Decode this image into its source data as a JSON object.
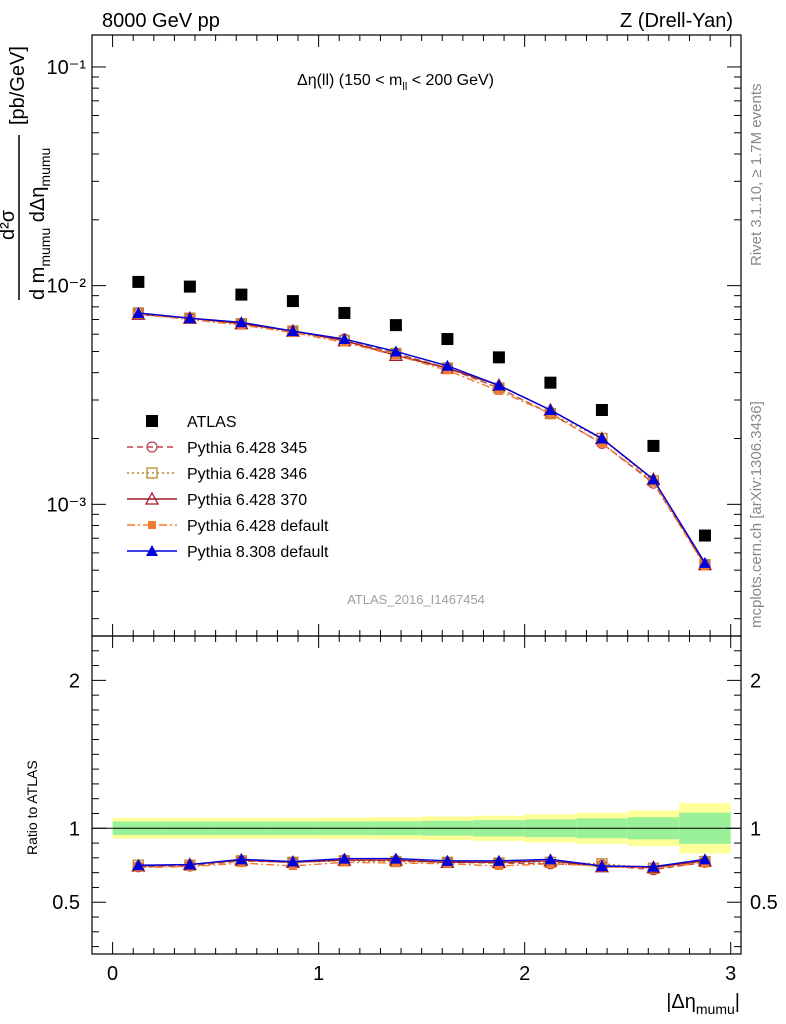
{
  "header": {
    "left": "8000 GeV pp",
    "right": "Z (Drell-Yan)"
  },
  "side_labels": {
    "rivet": "Rivet 3.1.10, ≥ 1.7M events",
    "mcplots": "mcplots.cern.ch [arXiv:1306.3436]"
  },
  "plot_title": {
    "main": "Δη(ll) (150 < m",
    "sub": "ll",
    "tail": " < 200 GeV)"
  },
  "watermark": "ATLAS_2016_I1467454",
  "ylabel": {
    "bracket": "[pb/GeV]",
    "num": "d²σ",
    "den_d": "d m",
    "den_sub1": "mumu",
    "den_d2": " dΔη",
    "den_sub2": "mumu"
  },
  "xlabel": {
    "main": "|Δη",
    "sub": "mumu",
    "tail": "|"
  },
  "ratio_ylabel": "Ratio to ATLAS",
  "legend": [
    {
      "name": "ATLAS",
      "color": "#000000",
      "marker": "square-filled",
      "line": "none"
    },
    {
      "name": "Pythia 6.428 345",
      "color": "#c0404f",
      "marker": "circle-open",
      "line": "dashed"
    },
    {
      "name": "Pythia 6.428 346",
      "color": "#b8862b",
      "marker": "square-open",
      "line": "dotted"
    },
    {
      "name": "Pythia 6.428 370",
      "color": "#a01c28",
      "marker": "triangle-open",
      "line": "solid"
    },
    {
      "name": "Pythia 6.428 default",
      "color": "#f37a32",
      "marker": "square-filled-small",
      "line": "dashdot"
    },
    {
      "name": "Pythia 8.308 default",
      "color": "#0000dd",
      "marker": "triangle-filled",
      "line": "solid"
    }
  ],
  "chart_data": {
    "type": "scatter",
    "main": {
      "yscale": "log",
      "ylim": [
        0.00025,
        0.14
      ],
      "yticklabels": [
        "10⁻¹",
        "10⁻²",
        "10⁻³"
      ],
      "ytickvalues": [
        0.1,
        0.01,
        0.001
      ]
    },
    "ratio": {
      "ylim": [
        0.15,
        2.3
      ],
      "yticks": [
        0.5,
        1,
        2
      ],
      "yticklabels": [
        "0.5",
        "1",
        "2"
      ],
      "band_inner": [
        0.045,
        0.045,
        0.045,
        0.045,
        0.046,
        0.047,
        0.05,
        0.055,
        0.06,
        0.067,
        0.075,
        0.105
      ],
      "band_outer": [
        0.07,
        0.07,
        0.07,
        0.07,
        0.072,
        0.075,
        0.08,
        0.085,
        0.095,
        0.105,
        0.12,
        0.17
      ]
    },
    "xlim": [
      -0.1,
      3.05
    ],
    "xticks": [
      0,
      1,
      2,
      3
    ],
    "xticklabels": [
      "0",
      "1",
      "2",
      "3"
    ],
    "x": [
      0.125,
      0.375,
      0.625,
      0.875,
      1.125,
      1.375,
      1.625,
      1.875,
      2.125,
      2.375,
      2.625,
      2.875
    ],
    "atlas": [
      0.0104,
      0.0099,
      0.0091,
      0.0085,
      0.0075,
      0.0066,
      0.0057,
      0.0047,
      0.0036,
      0.0027,
      0.00185,
      0.00072
    ],
    "series": [
      {
        "name": "Pythia 6.428 345",
        "values": [
          0.0075,
          0.0071,
          0.0067,
          0.0062,
          0.0057,
          0.0049,
          0.0042,
          0.0034,
          0.0026,
          0.0019,
          0.00125,
          0.00053
        ],
        "ratio": [
          0.74,
          0.745,
          0.78,
          0.77,
          0.785,
          0.78,
          0.77,
          0.765,
          0.76,
          0.75,
          0.72,
          0.77
        ]
      },
      {
        "name": "Pythia 6.428 346",
        "values": [
          0.0075,
          0.0071,
          0.0067,
          0.0062,
          0.0056,
          0.0049,
          0.0042,
          0.0034,
          0.0026,
          0.002,
          0.00128,
          0.00053
        ],
        "ratio": [
          0.75,
          0.75,
          0.78,
          0.77,
          0.78,
          0.775,
          0.77,
          0.765,
          0.77,
          0.76,
          0.73,
          0.775
        ]
      },
      {
        "name": "Pythia 6.428 370",
        "values": [
          0.0074,
          0.0071,
          0.0067,
          0.0062,
          0.0056,
          0.0048,
          0.0042,
          0.0035,
          0.0027,
          0.002,
          0.0013,
          0.00053
        ],
        "ratio": [
          0.745,
          0.755,
          0.785,
          0.77,
          0.785,
          0.785,
          0.77,
          0.77,
          0.78,
          0.74,
          0.735,
          0.78
        ]
      },
      {
        "name": "Pythia 6.428 default",
        "values": [
          0.0074,
          0.007,
          0.0066,
          0.0061,
          0.0055,
          0.0048,
          0.0041,
          0.0033,
          0.0026,
          0.0019,
          0.00127,
          0.00052
        ],
        "ratio": [
          0.735,
          0.74,
          0.765,
          0.745,
          0.77,
          0.765,
          0.76,
          0.745,
          0.76,
          0.745,
          0.73,
          0.765
        ]
      },
      {
        "name": "Pythia 8.308 default",
        "values": [
          0.0075,
          0.0071,
          0.0068,
          0.0062,
          0.0057,
          0.005,
          0.0043,
          0.0035,
          0.0027,
          0.002,
          0.0013,
          0.00054
        ],
        "ratio": [
          0.75,
          0.755,
          0.79,
          0.775,
          0.795,
          0.795,
          0.78,
          0.78,
          0.79,
          0.745,
          0.74,
          0.79
        ]
      }
    ]
  }
}
